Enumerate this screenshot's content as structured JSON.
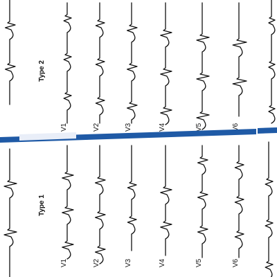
{
  "colors": {
    "divider": "#1f5aa6",
    "trace": "#111111",
    "background": "#ffffff"
  },
  "panels": [
    {
      "id": "type-2",
      "title": "Type 2",
      "leads": [
        "V1",
        "V2",
        "V3",
        "V4",
        "V5",
        "V6"
      ]
    },
    {
      "id": "type-1",
      "title": "Type 1",
      "leads": [
        "V1",
        "V2",
        "V3",
        "V4",
        "V5",
        "V6"
      ]
    }
  ]
}
